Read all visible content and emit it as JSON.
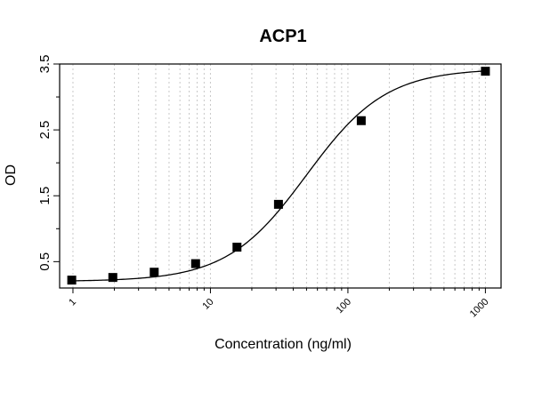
{
  "chart_data": {
    "type": "scatter",
    "title": "ACP1",
    "xlabel": "Concentration (ng/ml)",
    "ylabel": "OD",
    "x_scale": "log",
    "xlim": [
      0.8,
      1300
    ],
    "ylim": [
      0.1,
      3.5
    ],
    "x_ticks": [
      1,
      10,
      100,
      1000
    ],
    "x_tick_labels": [
      "1",
      "10",
      "100",
      "1000"
    ],
    "y_ticks": [
      0.5,
      1.5,
      2.5,
      3.5
    ],
    "y_tick_labels": [
      "0.5",
      "1.5",
      "2.5",
      "3.5"
    ],
    "grid": true,
    "legend": "none",
    "series": [
      {
        "marker": "square",
        "x": [
          0.98,
          1.95,
          3.9,
          7.8,
          15.6,
          31.25,
          125,
          1000
        ],
        "y": [
          0.22,
          0.26,
          0.34,
          0.47,
          0.72,
          1.37,
          2.64,
          3.39
        ]
      }
    ],
    "fit": {
      "type": "4PL",
      "A": 0.2,
      "B": 1.5,
      "C": 50,
      "D": 3.43
    }
  }
}
